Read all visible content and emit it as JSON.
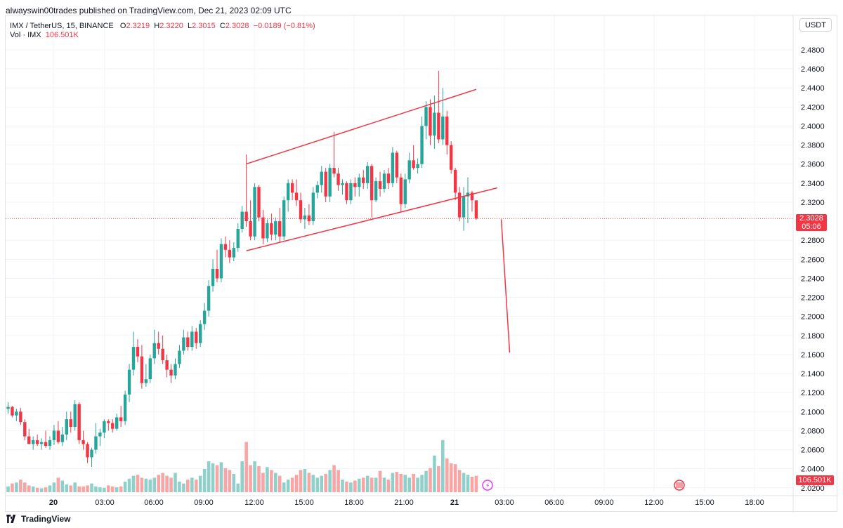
{
  "header": {
    "published_text": "alwayswin00trades published on TradingView.com, Dec 21, 2023 02:09 UTC"
  },
  "legend": {
    "symbol": "IMX / TetherUS, 15, BINANCE",
    "o_label": "O",
    "o_value": "2.3219",
    "h_label": "H",
    "h_value": "2.3220",
    "l_label": "L",
    "l_value": "2.3015",
    "c_label": "C",
    "c_value": "2.3028",
    "change": "−0.0189 (−0.81%)",
    "vol_label": "Vol · IMX",
    "vol_value": "106.501K"
  },
  "currency": "USDT",
  "price_tag": {
    "price": "2.3028",
    "countdown": "05:06"
  },
  "volume_tag": "106.501K",
  "footer": {
    "brand": "TradingView"
  },
  "colors": {
    "up": "#26a69a",
    "down": "#f23645",
    "up_vol": "#8fd1ca",
    "down_vol": "#f7a5a5",
    "drawing": "#f23645"
  },
  "chart_data": {
    "type": "candlestick",
    "symbol": "IMX / TetherUS",
    "interval": "15",
    "exchange": "BINANCE",
    "y_axis_ticks": [
      "2.4800",
      "2.4600",
      "2.4400",
      "2.4200",
      "2.4000",
      "2.3800",
      "2.3600",
      "2.3400",
      "2.3200",
      "2.2800",
      "2.2600",
      "2.2400",
      "2.2200",
      "2.2000",
      "2.1800",
      "2.1600",
      "2.1400",
      "2.1200",
      "2.1000",
      "2.0800",
      "2.0600",
      "2.0400",
      "2.0200"
    ],
    "y_range": [
      2.015,
      2.49
    ],
    "x_axis_ticks": [
      "20",
      "03:00",
      "06:00",
      "09:00",
      "12:00",
      "15:00",
      "18:00",
      "21:00",
      "21",
      "03:00",
      "06:00",
      "09:00",
      "12:00",
      "15:00",
      "18:00"
    ],
    "bar_minutes": 15,
    "candles": [
      {
        "o": 2.103,
        "h": 2.11,
        "l": 2.098,
        "c": 2.105
      },
      {
        "o": 2.105,
        "h": 2.106,
        "l": 2.094,
        "c": 2.096
      },
      {
        "o": 2.096,
        "h": 2.103,
        "l": 2.09,
        "c": 2.1
      },
      {
        "o": 2.1,
        "h": 2.104,
        "l": 2.086,
        "c": 2.089
      },
      {
        "o": 2.089,
        "h": 2.092,
        "l": 2.07,
        "c": 2.074
      },
      {
        "o": 2.074,
        "h": 2.082,
        "l": 2.066,
        "c": 2.066
      },
      {
        "o": 2.066,
        "h": 2.074,
        "l": 2.06,
        "c": 2.07
      },
      {
        "o": 2.07,
        "h": 2.076,
        "l": 2.064,
        "c": 2.066
      },
      {
        "o": 2.066,
        "h": 2.072,
        "l": 2.06,
        "c": 2.068
      },
      {
        "o": 2.068,
        "h": 2.08,
        "l": 2.062,
        "c": 2.064
      },
      {
        "o": 2.064,
        "h": 2.074,
        "l": 2.06,
        "c": 2.07
      },
      {
        "o": 2.07,
        "h": 2.086,
        "l": 2.065,
        "c": 2.08
      },
      {
        "o": 2.08,
        "h": 2.09,
        "l": 2.066,
        "c": 2.068
      },
      {
        "o": 2.068,
        "h": 2.084,
        "l": 2.064,
        "c": 2.076
      },
      {
        "o": 2.076,
        "h": 2.1,
        "l": 2.07,
        "c": 2.092
      },
      {
        "o": 2.092,
        "h": 2.1,
        "l": 2.078,
        "c": 2.084
      },
      {
        "o": 2.084,
        "h": 2.112,
        "l": 2.08,
        "c": 2.108
      },
      {
        "o": 2.108,
        "h": 2.11,
        "l": 2.066,
        "c": 2.07
      },
      {
        "o": 2.07,
        "h": 2.08,
        "l": 2.06,
        "c": 2.066
      },
      {
        "o": 2.066,
        "h": 2.068,
        "l": 2.046,
        "c": 2.052
      },
      {
        "o": 2.052,
        "h": 2.062,
        "l": 2.042,
        "c": 2.06
      },
      {
        "o": 2.06,
        "h": 2.088,
        "l": 2.056,
        "c": 2.074
      },
      {
        "o": 2.074,
        "h": 2.082,
        "l": 2.064,
        "c": 2.078
      },
      {
        "o": 2.078,
        "h": 2.092,
        "l": 2.072,
        "c": 2.09
      },
      {
        "o": 2.09,
        "h": 2.092,
        "l": 2.08,
        "c": 2.088
      },
      {
        "o": 2.088,
        "h": 2.092,
        "l": 2.078,
        "c": 2.082
      },
      {
        "o": 2.082,
        "h": 2.098,
        "l": 2.08,
        "c": 2.094
      },
      {
        "o": 2.094,
        "h": 2.106,
        "l": 2.084,
        "c": 2.09
      },
      {
        "o": 2.09,
        "h": 2.122,
        "l": 2.086,
        "c": 2.118
      },
      {
        "o": 2.118,
        "h": 2.15,
        "l": 2.11,
        "c": 2.144
      },
      {
        "o": 2.144,
        "h": 2.184,
        "l": 2.138,
        "c": 2.168
      },
      {
        "o": 2.168,
        "h": 2.176,
        "l": 2.152,
        "c": 2.158
      },
      {
        "o": 2.158,
        "h": 2.17,
        "l": 2.124,
        "c": 2.13
      },
      {
        "o": 2.13,
        "h": 2.15,
        "l": 2.126,
        "c": 2.134
      },
      {
        "o": 2.134,
        "h": 2.16,
        "l": 2.13,
        "c": 2.156
      },
      {
        "o": 2.156,
        "h": 2.186,
        "l": 2.15,
        "c": 2.172
      },
      {
        "o": 2.172,
        "h": 2.184,
        "l": 2.16,
        "c": 2.166
      },
      {
        "o": 2.166,
        "h": 2.18,
        "l": 2.15,
        "c": 2.154
      },
      {
        "o": 2.154,
        "h": 2.16,
        "l": 2.136,
        "c": 2.144
      },
      {
        "o": 2.144,
        "h": 2.15,
        "l": 2.13,
        "c": 2.138
      },
      {
        "o": 2.138,
        "h": 2.156,
        "l": 2.134,
        "c": 2.15
      },
      {
        "o": 2.15,
        "h": 2.17,
        "l": 2.146,
        "c": 2.164
      },
      {
        "o": 2.164,
        "h": 2.186,
        "l": 2.16,
        "c": 2.178
      },
      {
        "o": 2.178,
        "h": 2.184,
        "l": 2.164,
        "c": 2.168
      },
      {
        "o": 2.168,
        "h": 2.19,
        "l": 2.164,
        "c": 2.184
      },
      {
        "o": 2.184,
        "h": 2.188,
        "l": 2.166,
        "c": 2.172
      },
      {
        "o": 2.172,
        "h": 2.196,
        "l": 2.168,
        "c": 2.192
      },
      {
        "o": 2.192,
        "h": 2.214,
        "l": 2.186,
        "c": 2.206
      },
      {
        "o": 2.206,
        "h": 2.238,
        "l": 2.2,
        "c": 2.232
      },
      {
        "o": 2.232,
        "h": 2.26,
        "l": 2.226,
        "c": 2.25
      },
      {
        "o": 2.25,
        "h": 2.27,
        "l": 2.236,
        "c": 2.24
      },
      {
        "o": 2.24,
        "h": 2.282,
        "l": 2.236,
        "c": 2.276
      },
      {
        "o": 2.276,
        "h": 2.284,
        "l": 2.262,
        "c": 2.27
      },
      {
        "o": 2.27,
        "h": 2.28,
        "l": 2.256,
        "c": 2.262
      },
      {
        "o": 2.262,
        "h": 2.278,
        "l": 2.258,
        "c": 2.272
      },
      {
        "o": 2.272,
        "h": 2.298,
        "l": 2.268,
        "c": 2.292
      },
      {
        "o": 2.292,
        "h": 2.316,
        "l": 2.288,
        "c": 2.31
      },
      {
        "o": 2.31,
        "h": 2.37,
        "l": 2.294,
        "c": 2.3
      },
      {
        "o": 2.3,
        "h": 2.322,
        "l": 2.28,
        "c": 2.284
      },
      {
        "o": 2.284,
        "h": 2.34,
        "l": 2.28,
        "c": 2.336
      },
      {
        "o": 2.336,
        "h": 2.338,
        "l": 2.3,
        "c": 2.304
      },
      {
        "o": 2.304,
        "h": 2.312,
        "l": 2.276,
        "c": 2.282
      },
      {
        "o": 2.282,
        "h": 2.302,
        "l": 2.278,
        "c": 2.298
      },
      {
        "o": 2.298,
        "h": 2.308,
        "l": 2.28,
        "c": 2.286
      },
      {
        "o": 2.286,
        "h": 2.304,
        "l": 2.28,
        "c": 2.3
      },
      {
        "o": 2.3,
        "h": 2.314,
        "l": 2.278,
        "c": 2.284
      },
      {
        "o": 2.284,
        "h": 2.326,
        "l": 2.28,
        "c": 2.322
      },
      {
        "o": 2.322,
        "h": 2.344,
        "l": 2.31,
        "c": 2.34
      },
      {
        "o": 2.34,
        "h": 2.344,
        "l": 2.322,
        "c": 2.33
      },
      {
        "o": 2.33,
        "h": 2.344,
        "l": 2.316,
        "c": 2.322
      },
      {
        "o": 2.322,
        "h": 2.33,
        "l": 2.298,
        "c": 2.302
      },
      {
        "o": 2.302,
        "h": 2.314,
        "l": 2.292,
        "c": 2.306
      },
      {
        "o": 2.306,
        "h": 2.318,
        "l": 2.296,
        "c": 2.3
      },
      {
        "o": 2.3,
        "h": 2.336,
        "l": 2.296,
        "c": 2.33
      },
      {
        "o": 2.33,
        "h": 2.342,
        "l": 2.324,
        "c": 2.338
      },
      {
        "o": 2.338,
        "h": 2.358,
        "l": 2.33,
        "c": 2.352
      },
      {
        "o": 2.352,
        "h": 2.356,
        "l": 2.32,
        "c": 2.326
      },
      {
        "o": 2.326,
        "h": 2.36,
        "l": 2.32,
        "c": 2.356
      },
      {
        "o": 2.356,
        "h": 2.394,
        "l": 2.346,
        "c": 2.35
      },
      {
        "o": 2.35,
        "h": 2.356,
        "l": 2.332,
        "c": 2.338
      },
      {
        "o": 2.338,
        "h": 2.344,
        "l": 2.328,
        "c": 2.34
      },
      {
        "o": 2.34,
        "h": 2.342,
        "l": 2.318,
        "c": 2.322
      },
      {
        "o": 2.322,
        "h": 2.344,
        "l": 2.318,
        "c": 2.34
      },
      {
        "o": 2.34,
        "h": 2.346,
        "l": 2.326,
        "c": 2.336
      },
      {
        "o": 2.336,
        "h": 2.35,
        "l": 2.326,
        "c": 2.346
      },
      {
        "o": 2.346,
        "h": 2.354,
        "l": 2.334,
        "c": 2.34
      },
      {
        "o": 2.34,
        "h": 2.362,
        "l": 2.334,
        "c": 2.358
      },
      {
        "o": 2.358,
        "h": 2.36,
        "l": 2.304,
        "c": 2.322
      },
      {
        "o": 2.322,
        "h": 2.346,
        "l": 2.32,
        "c": 2.342
      },
      {
        "o": 2.342,
        "h": 2.352,
        "l": 2.326,
        "c": 2.334
      },
      {
        "o": 2.334,
        "h": 2.354,
        "l": 2.33,
        "c": 2.35
      },
      {
        "o": 2.35,
        "h": 2.356,
        "l": 2.334,
        "c": 2.34
      },
      {
        "o": 2.34,
        "h": 2.378,
        "l": 2.336,
        "c": 2.372
      },
      {
        "o": 2.372,
        "h": 2.374,
        "l": 2.34,
        "c": 2.346
      },
      {
        "o": 2.346,
        "h": 2.35,
        "l": 2.31,
        "c": 2.318
      },
      {
        "o": 2.318,
        "h": 2.35,
        "l": 2.314,
        "c": 2.344
      },
      {
        "o": 2.344,
        "h": 2.372,
        "l": 2.34,
        "c": 2.364
      },
      {
        "o": 2.364,
        "h": 2.38,
        "l": 2.354,
        "c": 2.356
      },
      {
        "o": 2.356,
        "h": 2.366,
        "l": 2.35,
        "c": 2.36
      },
      {
        "o": 2.36,
        "h": 2.41,
        "l": 2.356,
        "c": 2.4
      },
      {
        "o": 2.4,
        "h": 2.426,
        "l": 2.386,
        "c": 2.42
      },
      {
        "o": 2.42,
        "h": 2.428,
        "l": 2.38,
        "c": 2.39
      },
      {
        "o": 2.39,
        "h": 2.432,
        "l": 2.376,
        "c": 2.414
      },
      {
        "o": 2.414,
        "h": 2.458,
        "l": 2.382,
        "c": 2.386
      },
      {
        "o": 2.386,
        "h": 2.44,
        "l": 2.38,
        "c": 2.41
      },
      {
        "o": 2.41,
        "h": 2.416,
        "l": 2.37,
        "c": 2.38
      },
      {
        "o": 2.38,
        "h": 2.384,
        "l": 2.35,
        "c": 2.354
      },
      {
        "o": 2.354,
        "h": 2.356,
        "l": 2.322,
        "c": 2.33
      },
      {
        "o": 2.33,
        "h": 2.336,
        "l": 2.3,
        "c": 2.304
      },
      {
        "o": 2.304,
        "h": 2.336,
        "l": 2.29,
        "c": 2.326
      },
      {
        "o": 2.326,
        "h": 2.346,
        "l": 2.298,
        "c": 2.33
      },
      {
        "o": 2.33,
        "h": 2.332,
        "l": 2.31,
        "c": 2.322
      },
      {
        "o": 2.3219,
        "h": 2.322,
        "l": 2.3015,
        "c": 2.3028
      }
    ],
    "volume_ylim": [
      0,
      240000
    ],
    "volume": [
      12,
      18,
      20,
      26,
      20,
      14,
      12,
      9,
      8,
      10,
      14,
      20,
      30,
      24,
      16,
      14,
      20,
      12,
      12,
      14,
      18,
      12,
      10,
      9,
      14,
      12,
      10,
      12,
      22,
      28,
      34,
      36,
      30,
      28,
      26,
      30,
      36,
      40,
      34,
      30,
      40,
      22,
      18,
      26,
      30,
      26,
      34,
      48,
      64,
      60,
      56,
      62,
      50,
      46,
      38,
      18,
      64,
      104,
      56,
      64,
      54,
      40,
      52,
      46,
      40,
      34,
      20,
      26,
      30,
      36,
      46,
      48,
      40,
      36,
      30,
      34,
      38,
      46,
      56,
      46,
      26,
      22,
      20,
      24,
      28,
      30,
      34,
      30,
      30,
      44,
      30,
      26,
      40,
      42,
      38,
      36,
      30,
      38,
      30,
      36,
      44,
      50,
      76,
      54,
      108,
      70,
      60,
      58,
      46,
      40,
      36,
      32,
      34,
      36
    ],
    "drawings": {
      "channel_upper": {
        "from": {
          "bar": 57,
          "price": 2.3602
        },
        "to": {
          "bar": 112,
          "price": 2.4385
        }
      },
      "channel_lower": {
        "from": {
          "bar": 57,
          "price": 2.269
        },
        "to": {
          "bar": 117,
          "price": 2.335
        }
      },
      "projection": {
        "from": {
          "bar": 118,
          "price": 2.302
        },
        "to": {
          "bar": 120,
          "price": 2.162
        }
      }
    },
    "last_price_line": 2.3028,
    "grid": true,
    "legend": "top-left"
  }
}
